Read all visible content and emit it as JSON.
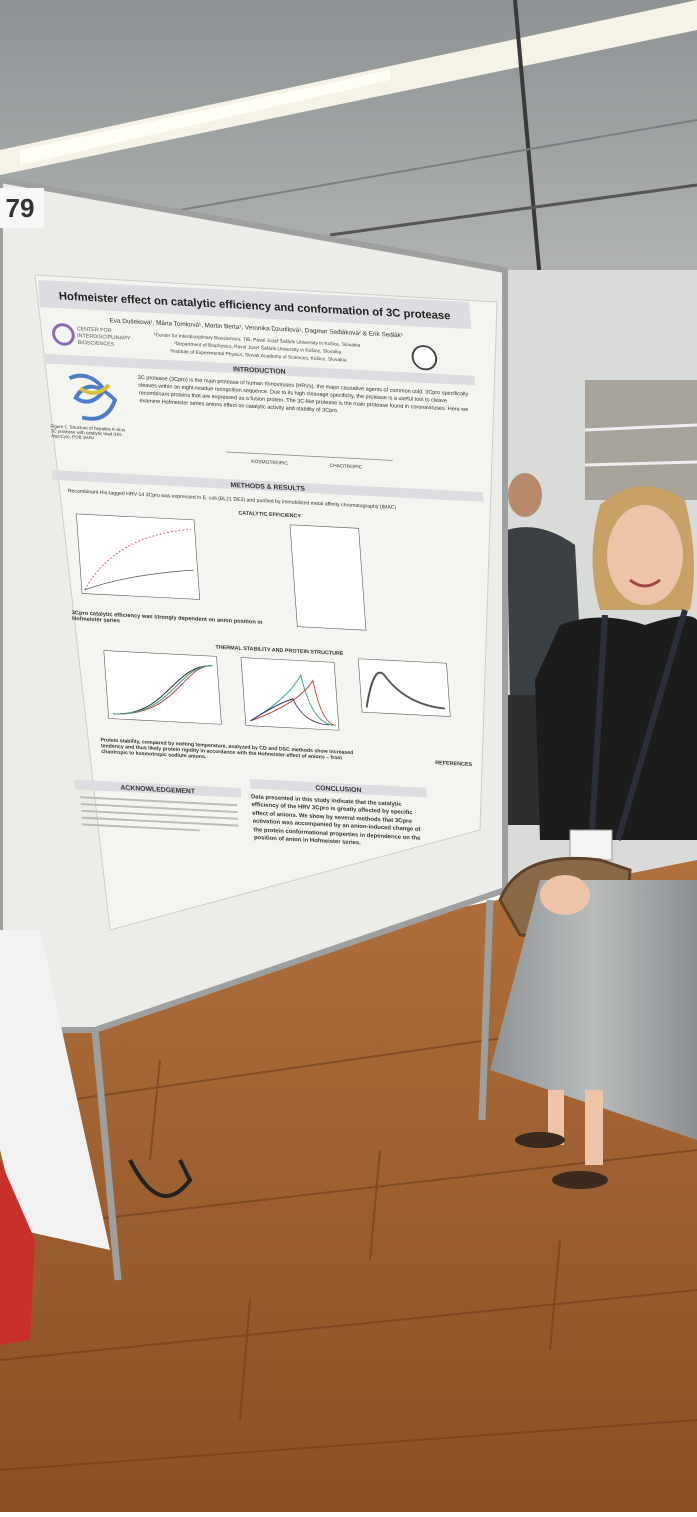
{
  "poster_number": "79",
  "poster": {
    "title": "Hofmeister effect on catalytic efficiency and conformation of 3C protease",
    "authors": "Eva Dušeková¹, Mária Tomková¹, Martin Berta¹, Veronika Dzurillová¹, Dagmar Sedláková² & Erik Sedlák¹",
    "affiliations": [
      "¹Center for Interdisciplinary Biosciences, TIB, Pavol Jozef Šafárik University in Košice, Slovakia",
      "²Department of Biophysics, Pavol Jozef Šafárik University in Košice, Slovakia",
      "³Institute of Experimental Physics, Slovak Academy of Sciences, Košice, Slovakia"
    ],
    "logo_text": [
      "CENTER FOR",
      "INTERDISCIPLINARY",
      "BIOSCIENCES"
    ],
    "sections": {
      "introduction": "INTRODUCTION",
      "methods": "METHODS & RESULTS",
      "catalytic": "CATALYTIC EFFICIENCY",
      "thermal": "THERMAL STABILITY AND PROTEIN STRUCTURE",
      "acknowledgement": "ACKNOWLEDGEMENT",
      "conclusion": "CONCLUSION",
      "references": "REFERENCES"
    },
    "intro_text": "3C protease (3Cpro) is the main protease of human rhinoviruses (HRVs), the major causative agents of common cold. 3Cpro specifically cleaves within an eight-residue recognition sequence. Due to its high cleavage specificity, the protease is a useful tool to cleave recombinant proteins that are expressed as a fusion protein. The 3C-like protease is the main protease found in coronaviruses. Here we examine Hofmeister series anions effect on catalytic activity and stability of 3Cpro.",
    "kosmotropic": "KOSMOTROPIC",
    "chaotropic": "CHAOTROPIC",
    "figure1": "Figure 1. Structure of hepatitis A virus 3C protease with catalytic triad (His-Asp-Cys); PDB 1HAV",
    "methods_text": "Recombinant His-tagged HRV-14 3Cpro was expressed in E. coli (BL21 DE3) and purified by immobilized metal affinity chromatography (IMAC)",
    "bullet1": "3Cpro catalytic efficiency was strongly dependent on anion position in Hofmeister series",
    "bullet2": "Protein stability, compared by melting temperature, analyzed by CD and DSC methods show increased tendency and thus likely protein rigidity in accordance with the Hofmeister effect of anions – from chaotropic to kosmotropic sodium anions.",
    "conclusion_text": "Data presented in this study indicate that the catalytic efficiency of the HRV 3Cpro is greatly affected by specific effect of anions. We show by several methods that 3Cpro activation was accompanied by an anion-induced change of the protein conformational properties in dependence on the position of anion in Hofmeister series."
  }
}
